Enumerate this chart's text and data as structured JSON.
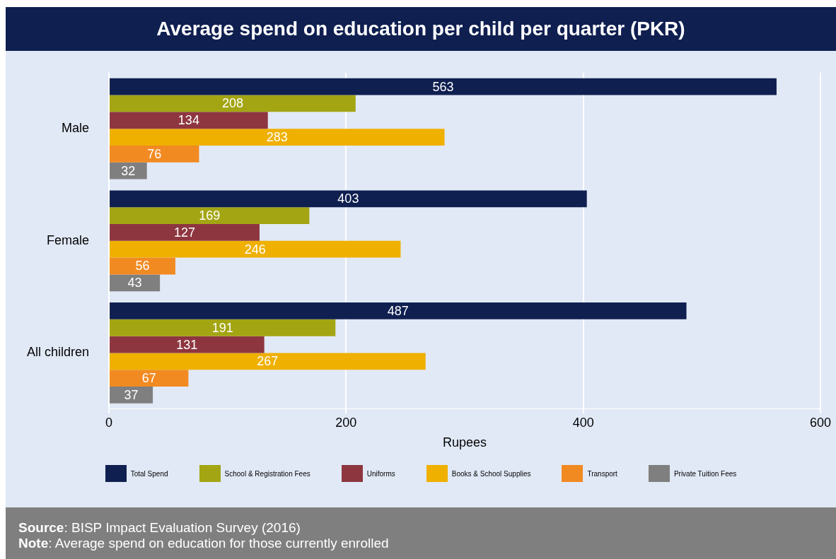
{
  "chart_data": {
    "type": "bar",
    "orientation": "horizontal",
    "title": "Average spend on education per child per quarter (PKR)",
    "categories": [
      "Male",
      "Female",
      "All children"
    ],
    "series": [
      {
        "name": "Total Spend",
        "color": "#0f1f50",
        "values": [
          563,
          403,
          487
        ]
      },
      {
        "name": "School & Registration Fees",
        "color": "#a3a513",
        "values": [
          208,
          169,
          191
        ]
      },
      {
        "name": "Uniforms",
        "color": "#8e3640",
        "values": [
          134,
          127,
          131
        ]
      },
      {
        "name": "Books & School Supplies",
        "color": "#efb000",
        "values": [
          283,
          246,
          267
        ]
      },
      {
        "name": "Transport",
        "color": "#f28a22",
        "values": [
          76,
          56,
          67
        ]
      },
      {
        "name": "Private Tuition Fees",
        "color": "#7f7f7f",
        "values": [
          32,
          43,
          37
        ]
      }
    ],
    "xlim": [
      0,
      600
    ],
    "xticks": [
      0,
      200,
      400,
      600
    ],
    "xlabel": "Rupees",
    "grid": "x",
    "legend": "bottom",
    "data_labels": true,
    "annotations": [
      "Source: BISP Impact Evaluation Survey (2016)",
      "Note: Average spend on education for those currently enrolled"
    ]
  }
}
